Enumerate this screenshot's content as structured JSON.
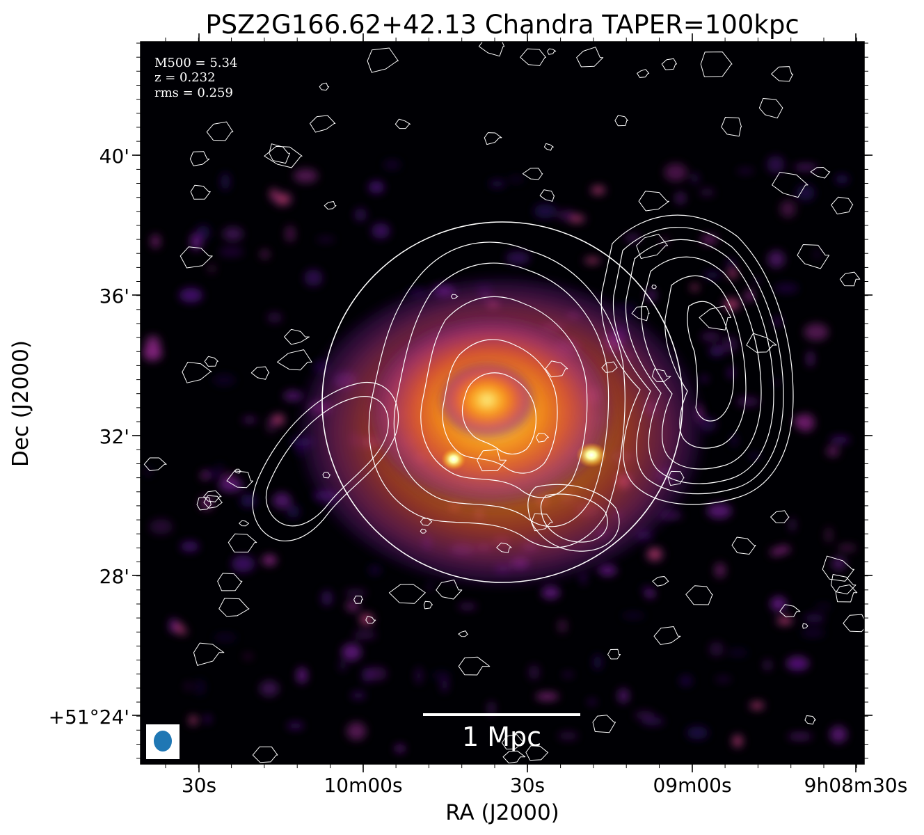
{
  "chart_data": {
    "type": "heatmap",
    "title": "PSZ2G166.62+42.13 Chandra TAPER=100kpc",
    "xlabel": "RA (J2000)",
    "ylabel": "Dec (J2000)",
    "x_ticks": [
      "30s",
      "10m00s",
      "30s",
      "09m00s",
      "9h08m30s"
    ],
    "y_ticks": [
      "40'",
      "36'",
      "32'",
      "28'",
      "+51°24'"
    ],
    "annotations": {
      "m500": "M500 = 5.34",
      "z": "z = 0.232",
      "rms": "rms = 0.259"
    },
    "scale_bar": "1 Mpc",
    "colormap": [
      "#000004",
      "#2c0a5e",
      "#6a1c8a",
      "#a7317e",
      "#dd513a",
      "#f78a17",
      "#fcc438",
      "#fcffa4"
    ],
    "contour_color": "#ffffff",
    "beam_color": "#1f77b4"
  }
}
